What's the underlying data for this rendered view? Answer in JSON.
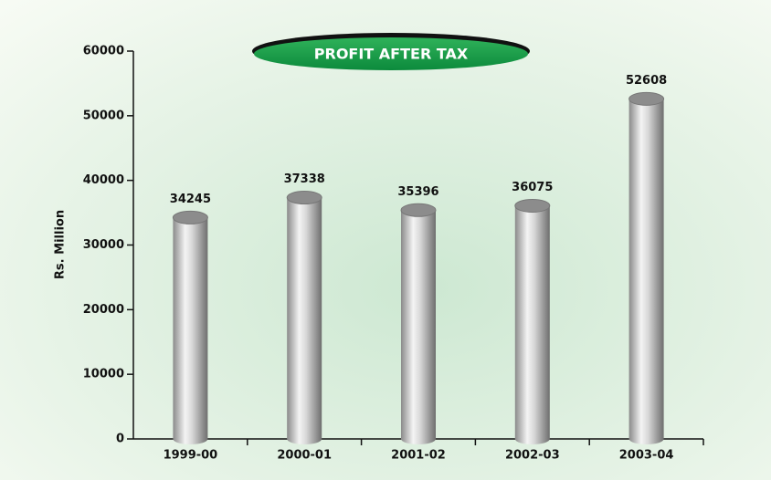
{
  "chart_data": {
    "type": "bar",
    "title": "PROFIT AFTER TAX",
    "y_label": "Rs. Million",
    "categories": [
      "1999-00",
      "2000-01",
      "2001-02",
      "2002-03",
      "2003-04"
    ],
    "values": [
      34245,
      37338,
      35396,
      36075,
      52608
    ],
    "color": "#a9a9a9",
    "ylim": [
      0,
      60000
    ],
    "yticks": [
      0,
      10000,
      20000,
      30000,
      40000,
      50000,
      60000
    ],
    "grid": false
  }
}
